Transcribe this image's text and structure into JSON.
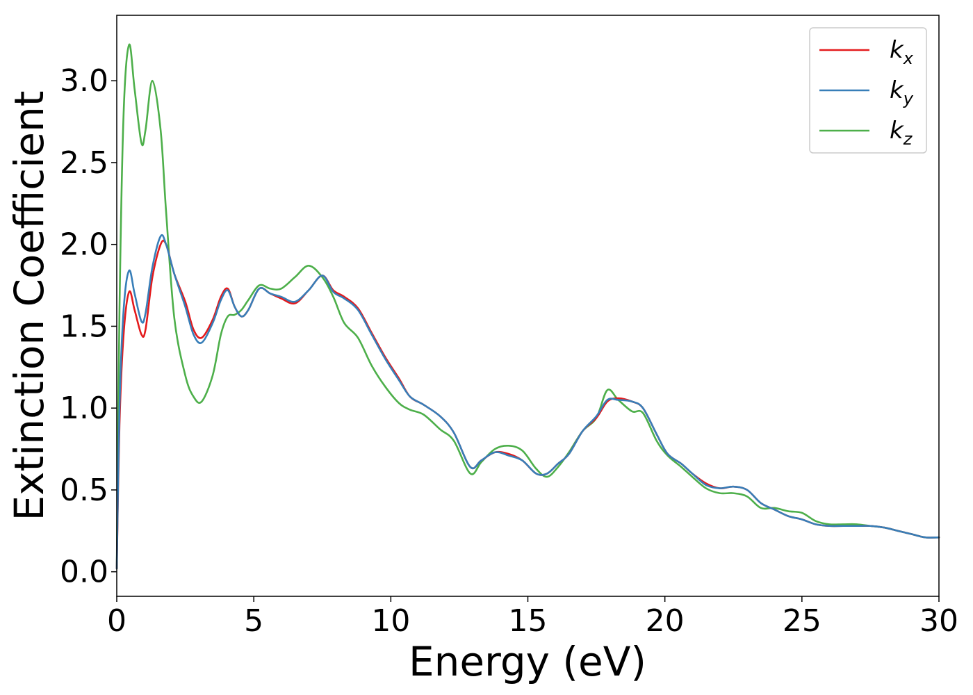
{
  "chart_data": {
    "type": "line",
    "title": "",
    "xlabel": "Energy (eV)",
    "ylabel": "Extinction Coefficient",
    "xlim": [
      0,
      30
    ],
    "ylim": [
      -0.15,
      3.4
    ],
    "xticks": [
      0,
      5,
      10,
      15,
      20,
      25,
      30
    ],
    "xtick_labels": [
      "0",
      "5",
      "10",
      "15",
      "20",
      "25",
      "30"
    ],
    "yticks": [
      0.0,
      0.5,
      1.0,
      1.5,
      2.0,
      2.5,
      3.0
    ],
    "ytick_labels": [
      "0.0",
      "0.5",
      "1.0",
      "1.5",
      "2.0",
      "2.5",
      "3.0"
    ],
    "grid": false,
    "legend_position": "top-right",
    "series": [
      {
        "name": "k",
        "sub": "x",
        "color": "#e41a1c",
        "x": [
          0,
          0.1,
          0.25,
          0.45,
          0.65,
          0.9,
          1.05,
          1.3,
          1.6,
          1.8,
          2.1,
          2.5,
          2.8,
          3.1,
          3.5,
          3.8,
          4.05,
          4.3,
          4.55,
          4.8,
          5.2,
          5.6,
          6.0,
          6.5,
          7.0,
          7.5,
          7.9,
          8.3,
          8.8,
          9.3,
          9.8,
          10.3,
          10.7,
          11.2,
          11.8,
          12.3,
          12.9,
          13.3,
          13.8,
          14.3,
          14.8,
          15.3,
          15.7,
          16.1,
          16.5,
          17.0,
          17.5,
          17.9,
          18.3,
          18.8,
          19.2,
          19.7,
          20.1,
          20.6,
          21.0,
          21.5,
          22.0,
          22.5,
          23.0,
          23.5,
          24.0,
          24.5,
          25.0,
          25.5,
          26.0,
          26.5,
          27.0,
          27.5,
          28.0,
          28.5,
          29.0,
          29.5,
          30.0
        ],
        "y": [
          0.02,
          0.9,
          1.45,
          1.71,
          1.6,
          1.45,
          1.48,
          1.8,
          2.0,
          2.0,
          1.82,
          1.65,
          1.48,
          1.43,
          1.54,
          1.68,
          1.73,
          1.62,
          1.56,
          1.6,
          1.73,
          1.7,
          1.67,
          1.64,
          1.72,
          1.81,
          1.72,
          1.68,
          1.61,
          1.46,
          1.31,
          1.18,
          1.07,
          1.02,
          0.95,
          0.85,
          0.64,
          0.68,
          0.73,
          0.72,
          0.68,
          0.6,
          0.6,
          0.66,
          0.72,
          0.86,
          0.94,
          1.04,
          1.06,
          1.04,
          1.0,
          0.84,
          0.72,
          0.66,
          0.6,
          0.54,
          0.51,
          0.52,
          0.5,
          0.42,
          0.38,
          0.34,
          0.32,
          0.29,
          0.28,
          0.28,
          0.28,
          0.28,
          0.27,
          0.25,
          0.23,
          0.21,
          0.21
        ]
      },
      {
        "name": "k",
        "sub": "y",
        "color": "#377eb8",
        "x": [
          0,
          0.1,
          0.25,
          0.45,
          0.65,
          0.9,
          1.05,
          1.3,
          1.6,
          1.8,
          2.1,
          2.5,
          2.8,
          3.1,
          3.5,
          3.8,
          4.05,
          4.3,
          4.55,
          4.8,
          5.2,
          5.6,
          6.0,
          6.5,
          7.0,
          7.5,
          7.9,
          8.3,
          8.8,
          9.3,
          9.8,
          10.3,
          10.7,
          11.2,
          11.8,
          12.3,
          12.9,
          13.3,
          13.8,
          14.3,
          14.8,
          15.3,
          15.7,
          16.1,
          16.5,
          17.0,
          17.5,
          17.9,
          18.3,
          18.8,
          19.2,
          19.7,
          20.1,
          20.6,
          21.0,
          21.5,
          22.0,
          22.5,
          23.0,
          23.5,
          24.0,
          24.5,
          25.0,
          25.5,
          26.0,
          26.5,
          27.0,
          27.5,
          28.0,
          28.5,
          29.0,
          29.5,
          30.0
        ],
        "y": [
          0.02,
          1.0,
          1.6,
          1.84,
          1.7,
          1.53,
          1.58,
          1.86,
          2.05,
          2.0,
          1.82,
          1.62,
          1.45,
          1.4,
          1.52,
          1.66,
          1.72,
          1.62,
          1.56,
          1.6,
          1.73,
          1.7,
          1.68,
          1.65,
          1.72,
          1.81,
          1.71,
          1.67,
          1.6,
          1.45,
          1.3,
          1.17,
          1.07,
          1.02,
          0.95,
          0.85,
          0.64,
          0.68,
          0.73,
          0.71,
          0.68,
          0.6,
          0.6,
          0.66,
          0.72,
          0.86,
          0.95,
          1.05,
          1.05,
          1.04,
          1.0,
          0.84,
          0.72,
          0.66,
          0.6,
          0.53,
          0.51,
          0.52,
          0.5,
          0.42,
          0.38,
          0.34,
          0.32,
          0.29,
          0.28,
          0.28,
          0.28,
          0.28,
          0.27,
          0.25,
          0.23,
          0.21,
          0.21
        ]
      },
      {
        "name": "k",
        "sub": "z",
        "color": "#4daf4a",
        "x": [
          0,
          0.1,
          0.25,
          0.45,
          0.65,
          0.9,
          1.05,
          1.3,
          1.6,
          1.8,
          2.1,
          2.5,
          2.8,
          3.1,
          3.5,
          3.8,
          4.05,
          4.3,
          4.55,
          4.8,
          5.2,
          5.6,
          6.0,
          6.5,
          7.0,
          7.5,
          7.9,
          8.3,
          8.8,
          9.3,
          9.8,
          10.3,
          10.7,
          11.2,
          11.8,
          12.3,
          12.9,
          13.3,
          13.8,
          14.3,
          14.8,
          15.3,
          15.7,
          16.1,
          16.5,
          17.0,
          17.5,
          17.9,
          18.3,
          18.8,
          19.2,
          19.7,
          20.1,
          20.6,
          21.0,
          21.5,
          22.0,
          22.5,
          23.0,
          23.5,
          24.0,
          24.5,
          25.0,
          25.5,
          26.0,
          26.5,
          27.0,
          27.5,
          28.0,
          28.5,
          29.0,
          29.5,
          30.0
        ],
        "y": [
          0.02,
          1.6,
          2.8,
          3.22,
          2.95,
          2.62,
          2.7,
          3.0,
          2.7,
          2.2,
          1.55,
          1.2,
          1.07,
          1.04,
          1.2,
          1.45,
          1.56,
          1.57,
          1.6,
          1.66,
          1.75,
          1.73,
          1.73,
          1.8,
          1.87,
          1.8,
          1.68,
          1.52,
          1.43,
          1.26,
          1.13,
          1.03,
          0.99,
          0.96,
          0.87,
          0.8,
          0.6,
          0.67,
          0.75,
          0.77,
          0.74,
          0.63,
          0.58,
          0.64,
          0.73,
          0.86,
          0.94,
          1.11,
          1.05,
          0.98,
          0.97,
          0.8,
          0.71,
          0.64,
          0.58,
          0.51,
          0.48,
          0.48,
          0.46,
          0.39,
          0.39,
          0.37,
          0.36,
          0.31,
          0.29,
          0.29,
          0.29,
          0.28,
          0.27,
          0.25,
          0.23,
          0.21,
          0.21
        ]
      }
    ]
  }
}
